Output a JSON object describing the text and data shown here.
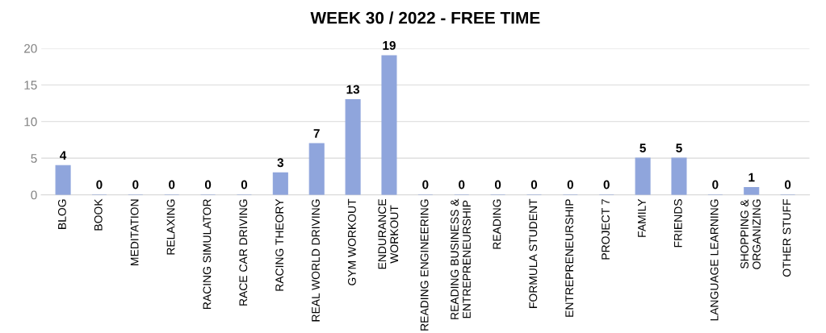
{
  "chart_data": {
    "type": "bar",
    "title": "WEEK 30 / 2022 - FREE TIME",
    "categories": [
      "BLOG",
      "BOOK",
      "MEDITATION",
      "RELAXING",
      "RACING SIMULATOR",
      "RACE CAR DRIVING",
      "RACING THEORY",
      "REAL WORLD DRIVING",
      "GYM WORKOUT",
      "ENDURANCE\nWORKOUT",
      "READING ENGINEERING",
      "READING BUSINESS &\nENTREPRENEURSHIP",
      "READING",
      "FORMULA STUDENT",
      "ENTREPRENEURSHIP",
      "PROJECT 7",
      "FAMILY",
      "FRIENDS",
      "LANGUAGE LEARNING",
      "SHOPPING &\nORGANIZING",
      "OTHER STUFF"
    ],
    "values": [
      4,
      0,
      0,
      0,
      0,
      0,
      3,
      7,
      13,
      19,
      0,
      0,
      0,
      0,
      0,
      0,
      5,
      5,
      0,
      1,
      0
    ],
    "color": "#8fa5dc",
    "ylim": [
      0,
      20
    ],
    "yticks": [
      0,
      5,
      10,
      15,
      20
    ],
    "grid": "y",
    "data_labels": true,
    "legend": false
  }
}
